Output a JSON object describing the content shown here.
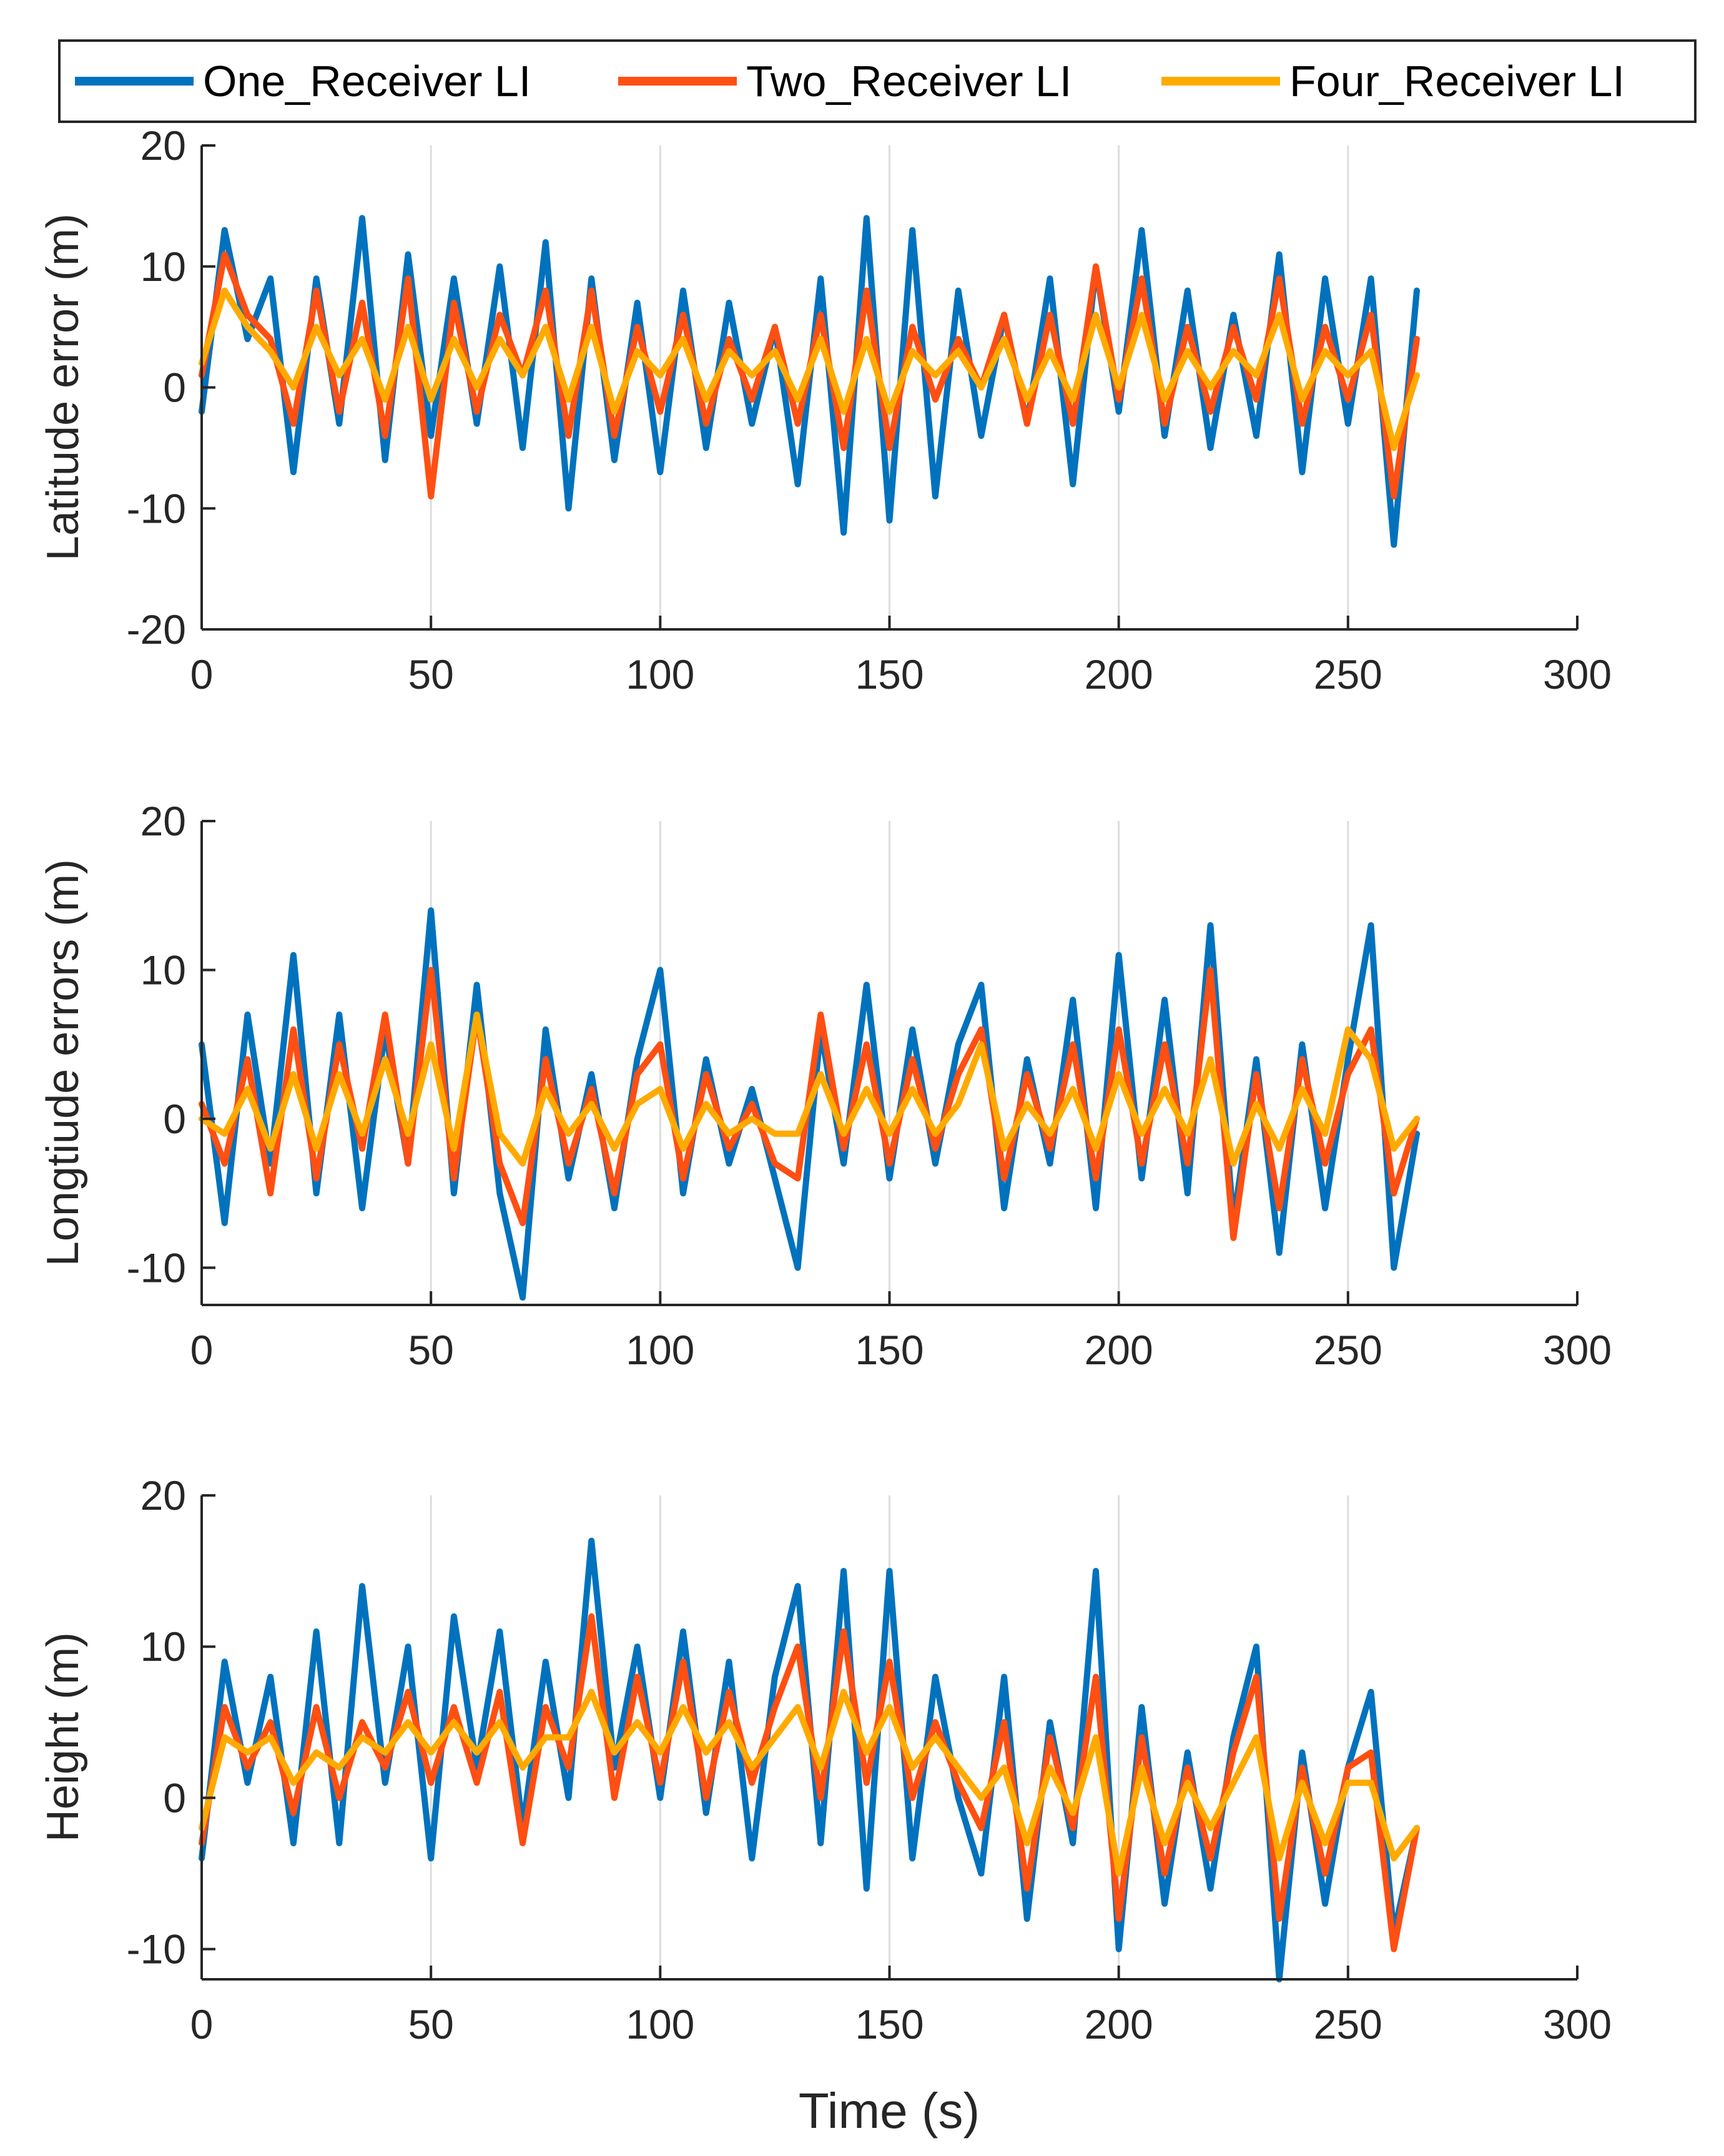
{
  "colors": {
    "one": "#0072BD",
    "two": "#FF4F12",
    "four": "#FFAA00",
    "axis": "#262626",
    "grid": "#DCDCDC"
  },
  "legend": {
    "entries": [
      "One_Receiver LI",
      "Two_Receiver LI",
      "Four_Receiver LI"
    ]
  },
  "chart_data": [
    {
      "type": "line",
      "title": "",
      "xlabel": "",
      "ylabel": "Latitude error (m)",
      "xlim": [
        0,
        300
      ],
      "ylim": [
        -20,
        20
      ],
      "xticks": [
        "0",
        "50",
        "100",
        "150",
        "200",
        "250",
        "300"
      ],
      "yticks": [
        "20",
        "10",
        "0",
        "-10",
        "-20"
      ],
      "grid_x": true,
      "x": [
        0,
        5,
        10,
        15,
        20,
        25,
        30,
        35,
        40,
        45,
        50,
        55,
        60,
        65,
        70,
        75,
        80,
        85,
        90,
        95,
        100,
        105,
        110,
        115,
        120,
        125,
        130,
        135,
        140,
        145,
        150,
        155,
        160,
        165,
        170,
        175,
        180,
        185,
        190,
        195,
        200,
        205,
        210,
        215,
        220,
        225,
        230,
        235,
        240,
        245,
        250,
        255,
        260,
        265
      ],
      "series": [
        {
          "name": "One_Receiver LI",
          "values": [
            -2,
            13,
            4,
            9,
            -7,
            9,
            -3,
            14,
            -6,
            11,
            -4,
            9,
            -3,
            10,
            -5,
            12,
            -10,
            9,
            -6,
            7,
            -7,
            8,
            -5,
            7,
            -3,
            5,
            -8,
            9,
            -12,
            14,
            -11,
            13,
            -9,
            8,
            -4,
            6,
            -3,
            9,
            -8,
            10,
            -2,
            13,
            -4,
            8,
            -5,
            6,
            -4,
            11,
            -7,
            9,
            -3,
            9,
            -13,
            8
          ]
        },
        {
          "name": "Two_Receiver LI",
          "values": [
            1,
            11,
            6,
            4,
            -3,
            8,
            -2,
            7,
            -4,
            9,
            -9,
            7,
            -2,
            6,
            1,
            8,
            -4,
            8,
            -4,
            5,
            -2,
            6,
            -3,
            4,
            -1,
            5,
            -3,
            6,
            -5,
            8,
            -5,
            5,
            -1,
            4,
            0,
            6,
            -3,
            6,
            -3,
            10,
            -1,
            9,
            -3,
            5,
            -2,
            5,
            -1,
            9,
            -3,
            5,
            -1,
            6,
            -9,
            4
          ]
        },
        {
          "name": "Four_Receiver LI",
          "values": [
            2,
            8,
            5,
            3,
            0,
            5,
            1,
            4,
            -1,
            5,
            -1,
            4,
            0,
            4,
            1,
            5,
            -1,
            5,
            -2,
            3,
            1,
            4,
            -1,
            3,
            1,
            3,
            -1,
            4,
            -2,
            4,
            -2,
            3,
            1,
            3,
            0,
            4,
            -1,
            3,
            -1,
            6,
            0,
            6,
            -1,
            3,
            0,
            3,
            1,
            6,
            -1,
            3,
            1,
            3,
            -5,
            1
          ]
        }
      ]
    },
    {
      "type": "line",
      "title": "",
      "xlabel": "",
      "ylabel": "Longtiude errors (m)",
      "xlim": [
        0,
        300
      ],
      "ylim": [
        -12.5,
        20
      ],
      "xticks": [
        "0",
        "50",
        "100",
        "150",
        "200",
        "250",
        "300"
      ],
      "yticks": [
        "20",
        "10",
        "0",
        "-10"
      ],
      "grid_x": true,
      "x": [
        0,
        5,
        10,
        15,
        20,
        25,
        30,
        35,
        40,
        45,
        50,
        55,
        60,
        65,
        70,
        75,
        80,
        85,
        90,
        95,
        100,
        105,
        110,
        115,
        120,
        125,
        130,
        135,
        140,
        145,
        150,
        155,
        160,
        165,
        170,
        175,
        180,
        185,
        190,
        195,
        200,
        205,
        210,
        215,
        220,
        225,
        230,
        235,
        240,
        245,
        250,
        255,
        260,
        265
      ],
      "series": [
        {
          "name": "One_Receiver LI",
          "values": [
            5,
            -7,
            7,
            -3,
            11,
            -5,
            7,
            -6,
            6,
            -3,
            14,
            -5,
            9,
            -5,
            -12,
            6,
            -4,
            3,
            -6,
            4,
            10,
            -5,
            4,
            -3,
            2,
            -4,
            -10,
            6,
            -3,
            9,
            -4,
            6,
            -3,
            5,
            9,
            -6,
            4,
            -3,
            8,
            -6,
            11,
            -4,
            8,
            -5,
            13,
            -7,
            4,
            -9,
            5,
            -6,
            4,
            13,
            -10,
            -1
          ]
        },
        {
          "name": "Two_Receiver LI",
          "values": [
            1,
            -3,
            4,
            -5,
            6,
            -4,
            5,
            -2,
            7,
            -3,
            10,
            -4,
            7,
            -3,
            -7,
            4,
            -3,
            2,
            -5,
            3,
            5,
            -4,
            3,
            -2,
            1,
            -3,
            -4,
            7,
            -2,
            5,
            -3,
            4,
            -2,
            3,
            6,
            -4,
            3,
            -2,
            5,
            -4,
            6,
            -3,
            5,
            -3,
            10,
            -8,
            3,
            -6,
            4,
            -3,
            3,
            6,
            -5,
            0
          ]
        },
        {
          "name": "Four_Receiver LI",
          "values": [
            0,
            -1,
            2,
            -2,
            3,
            -2,
            3,
            -1,
            4,
            -1,
            5,
            -2,
            7,
            -1,
            -3,
            2,
            -1,
            1,
            -2,
            1,
            2,
            -2,
            1,
            -1,
            0,
            -1,
            -1,
            3,
            -1,
            2,
            -1,
            2,
            -1,
            1,
            5,
            -2,
            1,
            -1,
            2,
            -2,
            3,
            -1,
            2,
            -1,
            4,
            -3,
            1,
            -2,
            2,
            -1,
            6,
            4,
            -2,
            0
          ]
        }
      ]
    },
    {
      "type": "line",
      "title": "",
      "xlabel": "Time (s)",
      "ylabel": "Height (m)",
      "xlim": [
        0,
        300
      ],
      "ylim": [
        -12,
        20
      ],
      "xticks": [
        "0",
        "50",
        "100",
        "150",
        "200",
        "250",
        "300"
      ],
      "yticks": [
        "20",
        "10",
        "0",
        "-10"
      ],
      "grid_x": true,
      "x": [
        0,
        5,
        10,
        15,
        20,
        25,
        30,
        35,
        40,
        45,
        50,
        55,
        60,
        65,
        70,
        75,
        80,
        85,
        90,
        95,
        100,
        105,
        110,
        115,
        120,
        125,
        130,
        135,
        140,
        145,
        150,
        155,
        160,
        165,
        170,
        175,
        180,
        185,
        190,
        195,
        200,
        205,
        210,
        215,
        220,
        225,
        230,
        235,
        240,
        245,
        250,
        255,
        260,
        265
      ],
      "series": [
        {
          "name": "One_Receiver LI",
          "values": [
            -4,
            9,
            1,
            8,
            -3,
            11,
            -3,
            14,
            1,
            10,
            -4,
            12,
            2,
            11,
            -2,
            9,
            0,
            17,
            2,
            10,
            0,
            11,
            -1,
            9,
            -4,
            8,
            14,
            -3,
            15,
            -6,
            15,
            -4,
            8,
            0,
            -5,
            8,
            -8,
            5,
            -3,
            15,
            -10,
            6,
            -7,
            3,
            -6,
            4,
            10,
            -12,
            3,
            -7,
            2,
            7,
            -9,
            -2
          ]
        },
        {
          "name": "Two_Receiver LI",
          "values": [
            -3,
            6,
            2,
            5,
            -1,
            6,
            0,
            5,
            2,
            7,
            1,
            6,
            1,
            7,
            -3,
            6,
            2,
            12,
            0,
            8,
            1,
            9,
            0,
            7,
            1,
            6,
            10,
            0,
            11,
            1,
            9,
            0,
            5,
            1,
            -2,
            5,
            -6,
            4,
            -2,
            8,
            -8,
            4,
            -5,
            2,
            -4,
            3,
            8,
            -8,
            2,
            -5,
            2,
            3,
            -10,
            -2
          ]
        },
        {
          "name": "Four_Receiver LI",
          "values": [
            -2,
            4,
            3,
            4,
            1,
            3,
            2,
            4,
            3,
            5,
            3,
            5,
            3,
            5,
            2,
            4,
            4,
            7,
            3,
            5,
            3,
            6,
            3,
            5,
            2,
            4,
            6,
            2,
            7,
            3,
            6,
            2,
            4,
            2,
            0,
            2,
            -3,
            2,
            -1,
            4,
            -5,
            2,
            -3,
            1,
            -2,
            1,
            4,
            -4,
            1,
            -3,
            1,
            1,
            -4,
            -2
          ]
        }
      ]
    }
  ]
}
